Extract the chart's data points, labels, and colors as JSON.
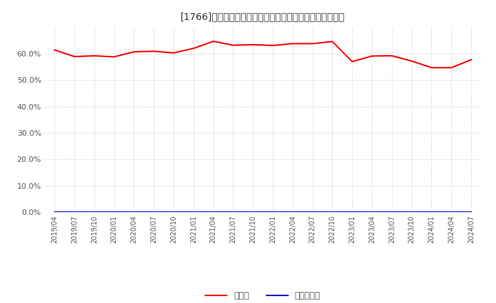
{
  "title": "[1766]　現顔金、有利子負債の総資産に対する比率の推移",
  "cash_label": "現顔金",
  "debt_label": "有利子負債",
  "cash_color": "#ff0000",
  "debt_color": "#0000cc",
  "background_color": "#ffffff",
  "plot_background_color": "#ffffff",
  "grid_color": "#bbbbbb",
  "ylim": [
    0.0,
    0.7
  ],
  "yticks": [
    0.0,
    0.1,
    0.2,
    0.3,
    0.4,
    0.5,
    0.6
  ],
  "x_labels": [
    "2019/04",
    "2019/07",
    "2019/10",
    "2020/01",
    "2020/04",
    "2020/07",
    "2020/10",
    "2021/01",
    "2021/04",
    "2021/07",
    "2021/10",
    "2022/01",
    "2022/04",
    "2022/07",
    "2022/10",
    "2023/01",
    "2023/04",
    "2023/07",
    "2023/10",
    "2024/01",
    "2024/04",
    "2024/07"
  ],
  "cash_values": [
    0.614,
    0.589,
    0.592,
    0.588,
    0.607,
    0.609,
    0.603,
    0.62,
    0.647,
    0.632,
    0.634,
    0.631,
    0.638,
    0.638,
    0.646,
    0.57,
    0.591,
    0.592,
    0.572,
    0.547,
    0.547,
    0.577
  ],
  "debt_values": [
    0.001,
    0.001,
    0.001,
    0.001,
    0.001,
    0.001,
    0.001,
    0.001,
    0.001,
    0.001,
    0.001,
    0.001,
    0.001,
    0.001,
    0.001,
    0.001,
    0.001,
    0.001,
    0.001,
    0.001,
    0.001,
    0.001
  ],
  "line_width": 1.5
}
